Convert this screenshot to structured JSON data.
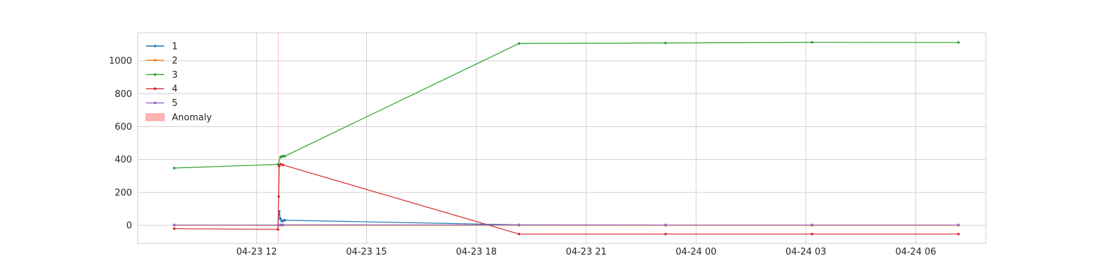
{
  "chart_data": {
    "type": "line",
    "x_axis": {
      "kind": "time",
      "ticks": [
        {
          "value": "2024-04-23T12:00",
          "label": "04-23 12"
        },
        {
          "value": "2024-04-23T15:00",
          "label": "04-23 15"
        },
        {
          "value": "2024-04-23T18:00",
          "label": "04-23 18"
        },
        {
          "value": "2024-04-23T21:00",
          "label": "04-23 21"
        },
        {
          "value": "2024-04-24T00:00",
          "label": "04-24 00"
        },
        {
          "value": "2024-04-24T03:00",
          "label": "04-24 03"
        },
        {
          "value": "2024-04-24T06:00",
          "label": "04-24 06"
        }
      ],
      "range": [
        "2024-04-23T08:45",
        "2024-04-24T07:55"
      ]
    },
    "y_axis": {
      "ticks": [
        {
          "value": 0,
          "label": "0"
        },
        {
          "value": 200,
          "label": "200"
        },
        {
          "value": 400,
          "label": "400"
        },
        {
          "value": 600,
          "label": "600"
        },
        {
          "value": 800,
          "label": "800"
        },
        {
          "value": 1000,
          "label": "1000"
        }
      ],
      "ylim": [
        -110,
        1170
      ]
    },
    "grid": true,
    "legend_position": "top-left",
    "series": [
      {
        "name": "1",
        "color": "#1f77b4",
        "points": [
          {
            "x": "2024-04-23T09:45",
            "y": 2
          },
          {
            "x": "2024-04-23T12:35",
            "y": 0
          },
          {
            "x": "2024-04-23T12:37",
            "y": 85
          },
          {
            "x": "2024-04-23T12:39",
            "y": 40
          },
          {
            "x": "2024-04-23T12:41",
            "y": 25
          },
          {
            "x": "2024-04-23T12:43",
            "y": 28
          },
          {
            "x": "2024-04-23T12:46",
            "y": 31
          },
          {
            "x": "2024-04-23T19:10",
            "y": 3
          },
          {
            "x": "2024-04-23T23:10",
            "y": 2
          },
          {
            "x": "2024-04-24T03:10",
            "y": 2
          },
          {
            "x": "2024-04-24T07:10",
            "y": 2
          }
        ]
      },
      {
        "name": "2",
        "color": "#ff7f0e",
        "points": [
          {
            "x": "2024-04-23T09:45",
            "y": 0
          },
          {
            "x": "2024-04-23T12:35",
            "y": 0
          },
          {
            "x": "2024-04-23T12:39",
            "y": 0
          },
          {
            "x": "2024-04-23T12:43",
            "y": 0
          },
          {
            "x": "2024-04-23T19:10",
            "y": 0
          },
          {
            "x": "2024-04-23T23:10",
            "y": 0
          },
          {
            "x": "2024-04-24T03:10",
            "y": 0
          },
          {
            "x": "2024-04-24T07:10",
            "y": 0
          }
        ]
      },
      {
        "name": "3",
        "color": "#2ca02c",
        "points": [
          {
            "x": "2024-04-23T09:45",
            "y": 348
          },
          {
            "x": "2024-04-23T12:35",
            "y": 370
          },
          {
            "x": "2024-04-23T12:39",
            "y": 415
          },
          {
            "x": "2024-04-23T12:41",
            "y": 418
          },
          {
            "x": "2024-04-23T12:43",
            "y": 420
          },
          {
            "x": "2024-04-23T12:46",
            "y": 420
          },
          {
            "x": "2024-04-23T19:10",
            "y": 1105
          },
          {
            "x": "2024-04-23T23:10",
            "y": 1108
          },
          {
            "x": "2024-04-24T03:10",
            "y": 1112
          },
          {
            "x": "2024-04-24T07:10",
            "y": 1111
          }
        ]
      },
      {
        "name": "4",
        "color": "#d62728",
        "points": [
          {
            "x": "2024-04-23T09:45",
            "y": -20
          },
          {
            "x": "2024-04-23T12:35",
            "y": -25
          },
          {
            "x": "2024-04-23T12:36",
            "y": 175
          },
          {
            "x": "2024-04-23T12:37",
            "y": 360
          },
          {
            "x": "2024-04-23T12:39",
            "y": 372
          },
          {
            "x": "2024-04-23T12:43",
            "y": 367
          },
          {
            "x": "2024-04-23T19:10",
            "y": -53
          },
          {
            "x": "2024-04-23T23:10",
            "y": -53
          },
          {
            "x": "2024-04-24T03:10",
            "y": -53
          },
          {
            "x": "2024-04-24T07:10",
            "y": -53
          }
        ]
      },
      {
        "name": "5",
        "color": "#9467bd",
        "points": [
          {
            "x": "2024-04-23T09:45",
            "y": 2
          },
          {
            "x": "2024-04-23T12:35",
            "y": 2
          },
          {
            "x": "2024-04-23T12:39",
            "y": 3
          },
          {
            "x": "2024-04-23T12:43",
            "y": 3
          },
          {
            "x": "2024-04-23T19:10",
            "y": 2
          },
          {
            "x": "2024-04-23T23:10",
            "y": 2
          },
          {
            "x": "2024-04-24T03:10",
            "y": 2
          },
          {
            "x": "2024-04-24T07:10",
            "y": 2
          }
        ]
      }
    ],
    "anomaly": {
      "label": "Anomaly",
      "color": "#ff9999",
      "x_start": "2024-04-23T12:35",
      "x_end": "2024-04-23T12:36"
    },
    "legend": [
      {
        "label": "1",
        "color": "#1f77b4",
        "kind": "line"
      },
      {
        "label": "2",
        "color": "#ff7f0e",
        "kind": "line"
      },
      {
        "label": "3",
        "color": "#2ca02c",
        "kind": "line"
      },
      {
        "label": "4",
        "color": "#d62728",
        "kind": "line"
      },
      {
        "label": "5",
        "color": "#9467bd",
        "kind": "line"
      },
      {
        "label": "Anomaly",
        "color": "#ff9999",
        "kind": "patch"
      }
    ]
  }
}
